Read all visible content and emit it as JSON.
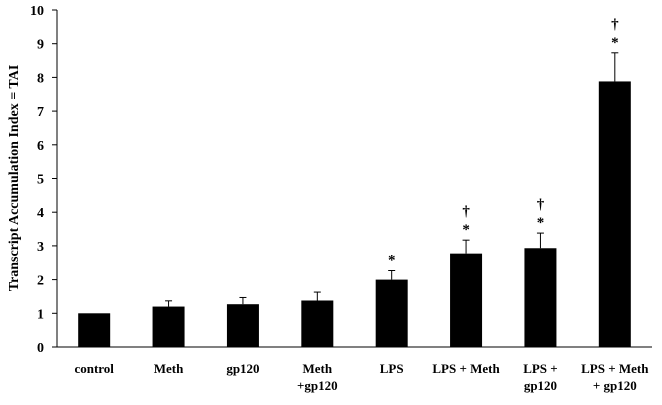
{
  "chart_data": {
    "type": "bar",
    "ylabel": "Transcript Accumulation Index = TAI",
    "xlabel": "",
    "title": "",
    "ylim": [
      0,
      10
    ],
    "yticks": [
      0,
      1,
      2,
      3,
      4,
      5,
      6,
      7,
      8,
      9,
      10
    ],
    "grid": false,
    "legend": "none",
    "bar_color": "#000000",
    "categories": [
      [
        "control"
      ],
      [
        "Meth"
      ],
      [
        "gp120"
      ],
      [
        "Meth",
        "+gp120"
      ],
      [
        "LPS"
      ],
      [
        "LPS + Meth"
      ],
      [
        "LPS +",
        "gp120"
      ],
      [
        "LPS + Meth",
        "+ gp120"
      ]
    ],
    "values": [
      1.0,
      1.2,
      1.27,
      1.38,
      2.0,
      2.77,
      2.93,
      7.88
    ],
    "errors": [
      0,
      0.17,
      0.2,
      0.25,
      0.27,
      0.4,
      0.45,
      0.85
    ],
    "annotations": [
      [],
      [],
      [],
      [],
      [
        "*"
      ],
      [
        "†",
        "*"
      ],
      [
        "†",
        "*"
      ],
      [
        "†",
        "*"
      ]
    ]
  }
}
